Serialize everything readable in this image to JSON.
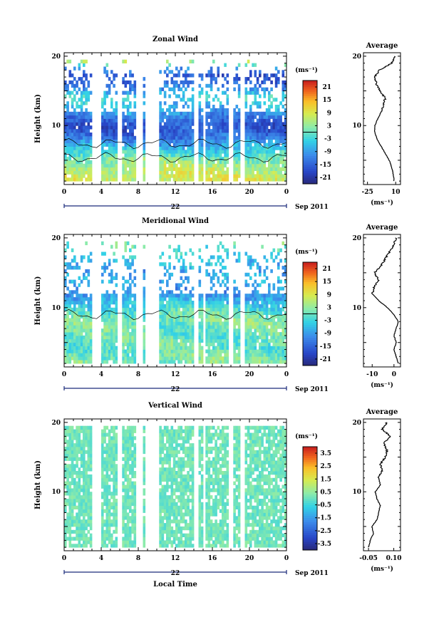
{
  "chart_data": [
    {
      "type": "heatmap",
      "title": "Zonal Wind",
      "ylabel": "Height (km)",
      "xlabel": "",
      "x_ticks": [
        "0",
        "4",
        "8",
        "12",
        "16",
        "20",
        "0"
      ],
      "x_range": [
        0,
        24
      ],
      "date_label": "22",
      "date_suffix": "Sep 2011",
      "y_ticks": [
        "10",
        "20"
      ],
      "y_range": [
        1.5,
        20.5
      ],
      "colorbar": {
        "unit": "(ms⁻¹)",
        "range": [
          -24,
          24
        ],
        "ticks": [
          "21",
          "15",
          "9",
          "3",
          "-3",
          "-9",
          "-15",
          "-21"
        ]
      },
      "contour_levels": [
        -20,
        -10,
        0,
        10
      ],
      "profile": {
        "title": "Average",
        "x_ticks": [
          "-25",
          "10"
        ],
        "x_tick_values": [
          -25,
          10
        ],
        "x_range": [
          -30,
          16
        ],
        "unit": "(ms⁻¹)",
        "heights": [
          2,
          3,
          4,
          5,
          6,
          7,
          8,
          9,
          10,
          11,
          12,
          13,
          14,
          15,
          16,
          17,
          18,
          19,
          20
        ],
        "values": [
          8,
          7,
          5,
          2,
          -3,
          -8,
          -13,
          -16,
          -16,
          -12,
          -8,
          -5,
          -3,
          -10,
          -14,
          -16,
          -10,
          5,
          9
        ]
      },
      "missing_time_bands": [
        [
          3.0,
          3.3
        ],
        [
          3.6,
          3.9
        ],
        [
          5.8,
          6.2
        ],
        [
          7.8,
          8.4
        ],
        [
          8.9,
          10.2
        ],
        [
          14.0,
          14.5
        ],
        [
          15.0,
          15.2
        ],
        [
          17.8,
          18.2
        ],
        [
          19.0,
          19.5
        ]
      ]
    },
    {
      "type": "heatmap",
      "title": "Meridional Wind",
      "ylabel": "Height (km)",
      "xlabel": "",
      "x_ticks": [
        "0",
        "4",
        "8",
        "12",
        "16",
        "20",
        "0"
      ],
      "x_range": [
        0,
        24
      ],
      "date_label": "22",
      "date_suffix": "Sep 2011",
      "y_ticks": [
        "10",
        "20"
      ],
      "y_range": [
        1.5,
        20.5
      ],
      "colorbar": {
        "unit": "(ms⁻¹)",
        "range": [
          -24,
          24
        ],
        "ticks": [
          "21",
          "15",
          "9",
          "3",
          "-3",
          "-9",
          "-15",
          "-21"
        ]
      },
      "contour_levels": [
        -10,
        0
      ],
      "profile": {
        "title": "Average",
        "x_ticks": [
          "-10",
          "0"
        ],
        "x_tick_values": [
          -10,
          0
        ],
        "x_range": [
          -14,
          3
        ],
        "unit": "(ms⁻¹)",
        "heights": [
          2,
          3,
          4,
          5,
          6,
          7,
          8,
          9,
          10,
          11,
          12,
          13,
          14,
          15,
          16,
          17,
          18,
          19,
          20
        ],
        "values": [
          2,
          1,
          0,
          1,
          0,
          1,
          2,
          0,
          -3,
          -7,
          -10,
          -9,
          -7,
          -9,
          -6,
          -4,
          -2,
          0,
          1
        ]
      },
      "missing_time_bands": [
        [
          3.0,
          3.3
        ],
        [
          3.6,
          3.9
        ],
        [
          5.8,
          6.2
        ],
        [
          7.8,
          8.4
        ],
        [
          8.9,
          10.2
        ],
        [
          14.0,
          14.5
        ],
        [
          15.0,
          15.2
        ],
        [
          17.8,
          18.2
        ],
        [
          19.0,
          19.5
        ]
      ]
    },
    {
      "type": "heatmap",
      "title": "Vertical Wind",
      "ylabel": "Height (km)",
      "xlabel": "Local Time",
      "x_ticks": [
        "0",
        "4",
        "8",
        "12",
        "16",
        "20",
        "0"
      ],
      "x_range": [
        0,
        24
      ],
      "date_label": "22",
      "date_suffix": "Sep 2011",
      "y_ticks": [
        "10",
        "20"
      ],
      "y_range": [
        1.5,
        20.5
      ],
      "colorbar": {
        "unit": "(ms⁻¹)",
        "range": [
          -4,
          4
        ],
        "ticks": [
          "3.5",
          "2.5",
          "1.5",
          "0.5",
          "-0.5",
          "-1.5",
          "-2.5",
          "-3.5"
        ]
      },
      "contour_levels": [],
      "profile": {
        "title": "Average",
        "x_ticks": [
          "-0.05",
          "0.10"
        ],
        "x_tick_values": [
          -0.05,
          0.1
        ],
        "x_range": [
          -0.08,
          0.14
        ],
        "unit": "(ms⁻¹)",
        "heights": [
          2,
          3,
          4,
          5,
          6,
          7,
          8,
          9,
          10,
          11,
          12,
          13,
          14,
          15,
          16,
          17,
          18,
          19,
          20
        ],
        "values": [
          -0.05,
          -0.04,
          -0.02,
          -0.03,
          0.0,
          0.01,
          0.02,
          0.0,
          -0.01,
          0.02,
          0.01,
          0.03,
          0.02,
          0.05,
          0.06,
          0.04,
          0.08,
          0.03,
          0.06
        ]
      },
      "missing_time_bands": [
        [
          3.0,
          3.3
        ],
        [
          3.6,
          3.9
        ],
        [
          5.8,
          6.2
        ],
        [
          7.8,
          8.4
        ],
        [
          8.9,
          10.2
        ],
        [
          14.0,
          14.5
        ],
        [
          15.0,
          15.2
        ],
        [
          17.8,
          18.2
        ],
        [
          19.0,
          19.5
        ]
      ]
    }
  ]
}
